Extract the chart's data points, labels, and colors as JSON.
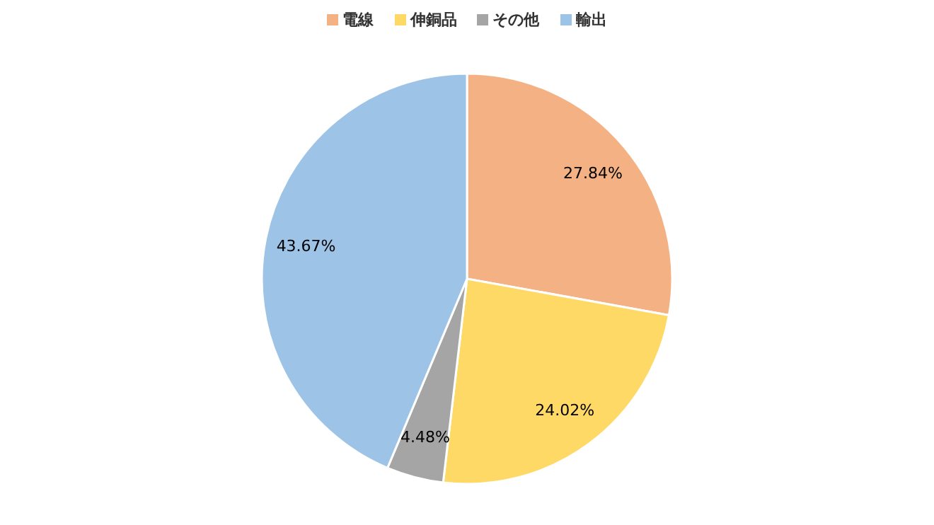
{
  "chart_data": {
    "type": "pie",
    "categories": [
      "電線",
      "伸銅品",
      "その他",
      "輸出"
    ],
    "values": [
      27.84,
      24.02,
      4.48,
      43.67
    ],
    "colors": [
      "#f4b183",
      "#ffd966",
      "#a5a5a5",
      "#9dc3e6"
    ],
    "value_labels": [
      "27.84%",
      "24.02%",
      "4.48%",
      "43.67%"
    ],
    "legend": "top"
  }
}
